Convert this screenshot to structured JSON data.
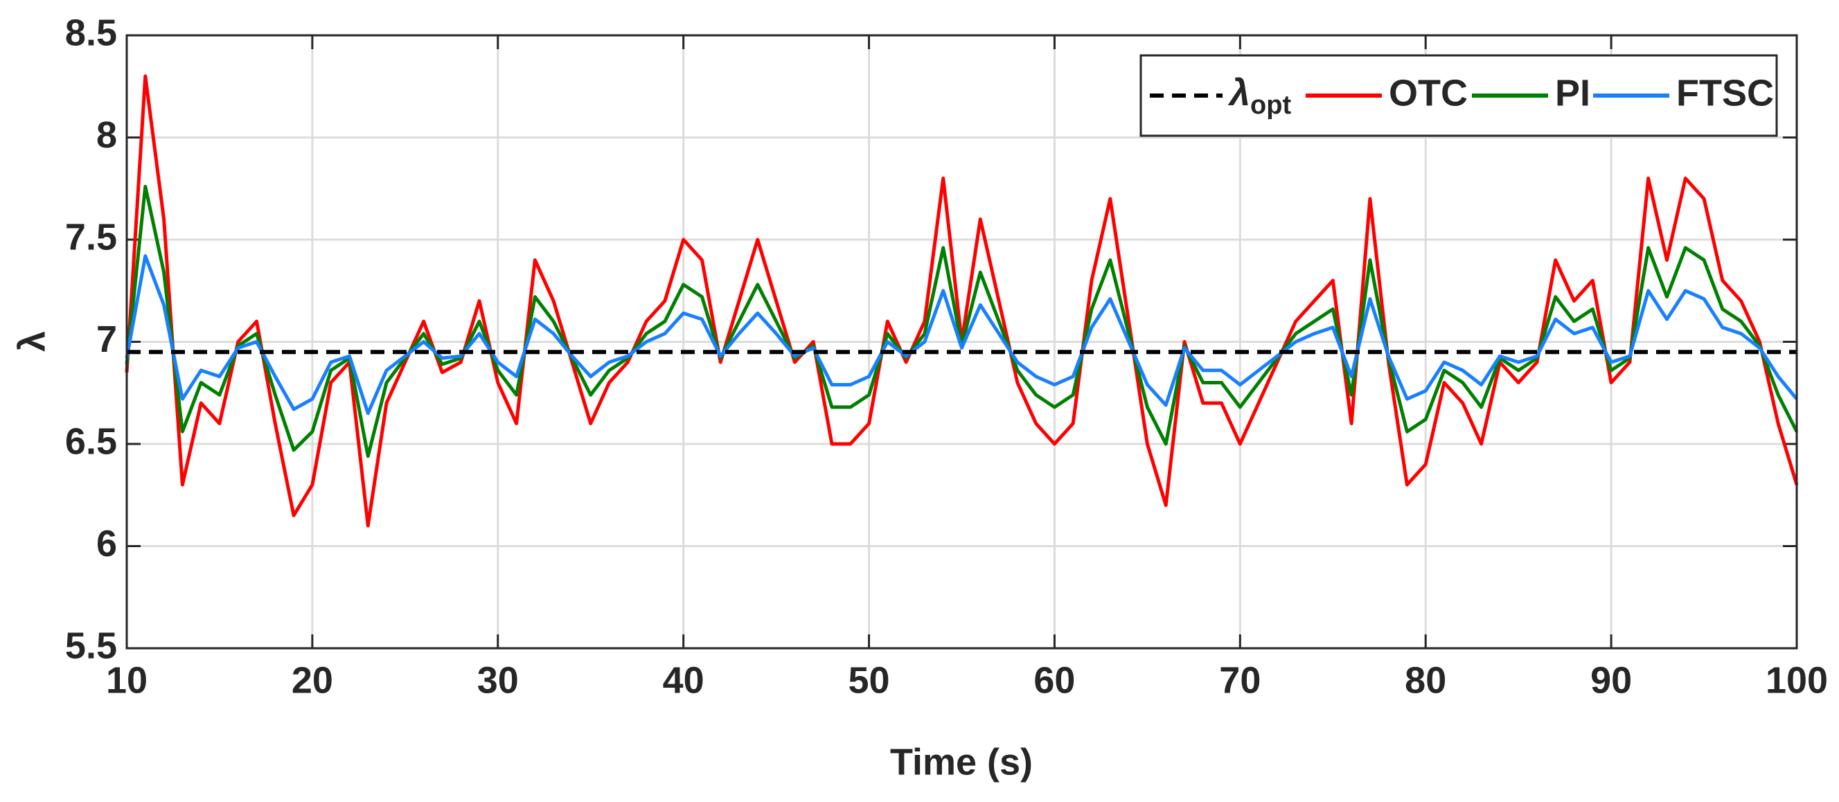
{
  "chart_data": {
    "type": "line",
    "xlabel": "Time (s)",
    "ylabel": "λ",
    "xlim": [
      10,
      100
    ],
    "xticks": [
      10,
      20,
      30,
      40,
      50,
      60,
      70,
      80,
      90,
      100
    ],
    "ylim": [
      5.5,
      8.5
    ],
    "yticks": [
      5.5,
      6,
      6.5,
      7,
      7.5,
      8,
      8.5
    ],
    "grid": true,
    "legend": "upper right",
    "x": [
      10,
      11,
      12,
      13,
      14,
      15,
      16,
      17,
      18,
      19,
      20,
      21,
      22,
      23,
      24,
      25,
      26,
      27,
      28,
      29,
      30,
      31,
      32,
      33,
      34,
      35,
      36,
      37,
      38,
      39,
      40,
      41,
      42,
      43,
      44,
      45,
      46,
      47,
      48,
      49,
      50,
      51,
      52,
      53,
      54,
      55,
      56,
      57,
      58,
      59,
      60,
      61,
      62,
      63,
      64,
      65,
      66,
      67,
      68,
      69,
      70,
      71,
      72,
      73,
      74,
      75,
      76,
      77,
      78,
      79,
      80,
      81,
      82,
      83,
      84,
      85,
      86,
      87,
      88,
      89,
      90,
      91,
      92,
      93,
      94,
      95,
      96,
      97,
      98,
      99,
      100
    ],
    "series": [
      {
        "name": "λopt",
        "color": "#000000",
        "line_style": "dashed",
        "x": [
          10,
          100
        ],
        "values": [
          6.95,
          6.95
        ]
      },
      {
        "name": "OTC",
        "color": "#ff0000",
        "values": [
          6.85,
          8.3,
          7.6,
          6.3,
          6.7,
          6.6,
          7.0,
          7.1,
          6.6,
          6.15,
          6.3,
          6.8,
          6.9,
          6.1,
          6.7,
          6.9,
          7.1,
          6.85,
          6.9,
          7.2,
          6.8,
          6.6,
          7.4,
          7.2,
          6.9,
          6.6,
          6.8,
          6.9,
          7.1,
          7.2,
          7.5,
          7.4,
          6.9,
          7.2,
          7.5,
          7.2,
          6.9,
          7.0,
          6.5,
          6.5,
          6.6,
          7.1,
          6.9,
          7.1,
          7.8,
          7.0,
          7.6,
          7.2,
          6.8,
          6.6,
          6.5,
          6.6,
          7.3,
          7.7,
          7.1,
          6.5,
          6.2,
          7.0,
          6.7,
          6.7,
          6.5,
          6.7,
          6.9,
          7.1,
          7.2,
          7.3,
          6.6,
          7.7,
          6.9,
          6.3,
          6.4,
          6.8,
          6.7,
          6.5,
          6.9,
          6.8,
          6.9,
          7.4,
          7.2,
          7.3,
          6.8,
          6.9,
          7.8,
          7.4,
          7.8,
          7.7,
          7.3,
          7.2,
          7.0,
          6.6,
          6.3
        ]
      },
      {
        "name": "PI",
        "color": "#008000",
        "values": [
          6.89,
          7.76,
          7.34,
          6.56,
          6.8,
          6.74,
          6.98,
          7.04,
          6.74,
          6.47,
          6.56,
          6.86,
          6.92,
          6.44,
          6.8,
          6.92,
          7.04,
          6.89,
          6.92,
          7.1,
          6.86,
          6.74,
          7.22,
          7.1,
          6.92,
          6.74,
          6.86,
          6.92,
          7.04,
          7.1,
          7.28,
          7.22,
          6.92,
          7.1,
          7.28,
          7.1,
          6.92,
          6.98,
          6.68,
          6.68,
          6.74,
          7.04,
          6.92,
          7.04,
          7.46,
          6.98,
          7.34,
          7.1,
          6.86,
          6.74,
          6.68,
          6.74,
          7.16,
          7.4,
          7.04,
          6.68,
          6.5,
          6.98,
          6.8,
          6.8,
          6.68,
          6.8,
          6.92,
          7.04,
          7.1,
          7.16,
          6.74,
          7.4,
          6.92,
          6.56,
          6.62,
          6.86,
          6.8,
          6.68,
          6.92,
          6.86,
          6.92,
          7.22,
          7.1,
          7.16,
          6.86,
          6.92,
          7.46,
          7.22,
          7.46,
          7.4,
          7.16,
          7.1,
          6.98,
          6.74,
          6.56
        ]
      },
      {
        "name": "FTSC",
        "color": "#1a7fff",
        "values": [
          6.92,
          7.42,
          7.18,
          6.72,
          6.86,
          6.83,
          6.97,
          7.0,
          6.83,
          6.67,
          6.72,
          6.9,
          6.93,
          6.65,
          6.86,
          6.93,
          7.0,
          6.92,
          6.93,
          7.04,
          6.9,
          6.83,
          7.11,
          7.04,
          6.93,
          6.83,
          6.9,
          6.93,
          7.0,
          7.04,
          7.14,
          7.11,
          6.93,
          7.04,
          7.14,
          7.04,
          6.93,
          6.97,
          6.79,
          6.79,
          6.83,
          7.0,
          6.93,
          7.0,
          7.25,
          6.97,
          7.18,
          7.04,
          6.9,
          6.83,
          6.79,
          6.83,
          7.07,
          7.21,
          7.0,
          6.79,
          6.69,
          6.97,
          6.86,
          6.86,
          6.79,
          6.86,
          6.93,
          7.0,
          7.04,
          7.07,
          6.83,
          7.21,
          6.93,
          6.72,
          6.76,
          6.9,
          6.86,
          6.79,
          6.93,
          6.9,
          6.93,
          7.11,
          7.04,
          7.07,
          6.9,
          6.93,
          7.25,
          7.11,
          7.25,
          7.21,
          7.07,
          7.04,
          6.97,
          6.83,
          6.72
        ]
      }
    ]
  }
}
